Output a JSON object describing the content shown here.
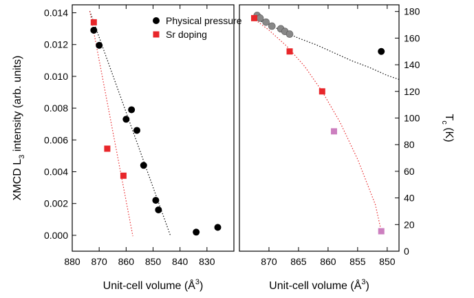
{
  "chart_data": [
    {
      "type": "scatter",
      "panel": "left",
      "xlabel": "Unit-cell volume (Å",
      "xlabel_sup": "3",
      "xlabel_close": ")",
      "ylabel": "XMCD L",
      "ylabel_sub": "3",
      "ylabel_rest": " intensity  (arb. units)",
      "xlim": [
        880,
        820
      ],
      "ylim": [
        -0.001,
        0.0145
      ],
      "xticks": [
        880,
        870,
        860,
        850,
        840,
        830
      ],
      "xtick_labels": [
        "880",
        "870",
        "860",
        "850",
        "840",
        "830"
      ],
      "yticks": [
        0,
        0.002,
        0.004,
        0.006,
        0.008,
        0.01,
        0.012,
        0.014
      ],
      "ytick_labels": [
        "0.000",
        "0.002",
        "0.004",
        "0.006",
        "0.008",
        "0.010",
        "0.012",
        "0.014"
      ],
      "legend": {
        "placement": "top-right"
      },
      "series": [
        {
          "name": "Physical pressure",
          "marker": "circle",
          "color": "#000000",
          "x": [
            872.0,
            870.0,
            860.0,
            858.0,
            856.0,
            853.5,
            849.0,
            848.0,
            834.0,
            826.0
          ],
          "y": [
            0.0129,
            0.01195,
            0.0073,
            0.0079,
            0.0066,
            0.0044,
            0.0022,
            0.0016,
            0.0002,
            0.0005
          ],
          "fit": {
            "color": "#000000",
            "x": [
              873.5,
              843.5
            ],
            "y": [
              0.0141,
              -5e-05
            ]
          }
        },
        {
          "name": "Sr doping",
          "marker": "square",
          "color": "#e8262a",
          "x": [
            872.0,
            867.0,
            861.0
          ],
          "y": [
            0.0134,
            0.00545,
            0.00375
          ],
          "fit": {
            "color": "#e8262a",
            "x": [
              873.5,
              857.5
            ],
            "y": [
              0.0141,
              -5e-05
            ]
          }
        }
      ]
    },
    {
      "type": "scatter",
      "panel": "right",
      "xlabel": "Unit-cell volume (Å",
      "xlabel_sup": "3",
      "xlabel_close": ")",
      "ylabel": "T",
      "ylabel_sub": "c",
      "ylabel_rest": " (K)",
      "xlim": [
        875,
        848
      ],
      "ylim": [
        0,
        185
      ],
      "xticks": [
        870,
        865,
        860,
        855,
        850
      ],
      "xtick_labels": [
        "870",
        "865",
        "860",
        "855",
        "850"
      ],
      "yticks": [
        0,
        20,
        40,
        60,
        80,
        100,
        120,
        140,
        160,
        180
      ],
      "ytick_labels": [
        "0",
        "20",
        "40",
        "60",
        "80",
        "100",
        "120",
        "140",
        "160",
        "180"
      ],
      "series": [
        {
          "marker": "circle",
          "color": "#888888",
          "x": [
            872.0,
            871.5,
            870.5,
            869.5,
            868.0,
            867.3,
            866.5
          ],
          "y": [
            177,
            175,
            172,
            169,
            167,
            165,
            163
          ]
        },
        {
          "marker": "circle",
          "color": "#000000",
          "x": [
            851.0
          ],
          "y": [
            150
          ]
        },
        {
          "marker": "square",
          "color": "#e8262a",
          "x": [
            872.5,
            866.5,
            861.0
          ],
          "y": [
            175,
            150,
            120
          ]
        },
        {
          "marker": "square",
          "color": "#cc7fbf",
          "x": [
            859.0,
            851.0
          ],
          "y": [
            90,
            15
          ]
        }
      ],
      "fits": [
        {
          "color": "#000000",
          "x": [
            873,
            871,
            868,
            865,
            862,
            859,
            856,
            853,
            850,
            848
          ],
          "y": [
            176,
            172,
            166,
            160,
            155,
            149,
            143,
            138,
            132,
            129
          ]
        },
        {
          "color": "#e8262a",
          "x": [
            873,
            870,
            867,
            864,
            861,
            858,
            855,
            852,
            851
          ],
          "y": [
            176,
            166,
            154,
            139,
            120,
            97,
            69,
            35,
            15
          ]
        }
      ]
    }
  ]
}
